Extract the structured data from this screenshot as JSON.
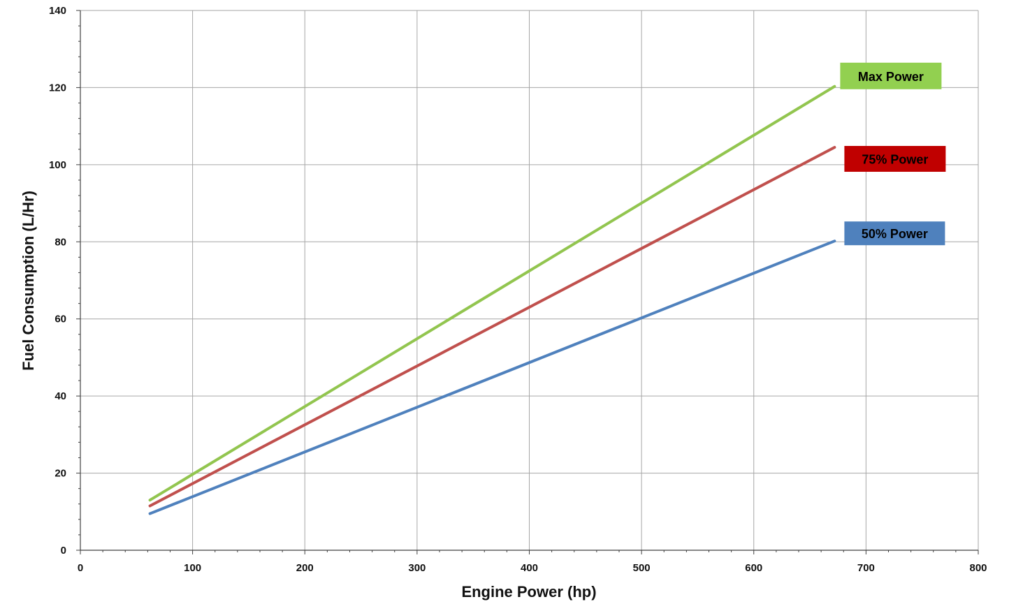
{
  "chart_data": {
    "type": "line",
    "title": "",
    "xlabel": "Engine Power (hp)",
    "ylabel": "Fuel Consumption (L/Hr)",
    "xlim": [
      0,
      800
    ],
    "ylim": [
      0,
      140
    ],
    "xticks": [
      0,
      100,
      200,
      300,
      400,
      500,
      600,
      700,
      800
    ],
    "yticks": [
      0,
      20,
      40,
      60,
      80,
      100,
      120,
      140
    ],
    "x_minor_step": 20,
    "y_minor_step": 4,
    "grid": true,
    "legend": "inline labels at right end of each line",
    "series": [
      {
        "name": "Max Power",
        "color": "#92c54f",
        "label_color": "#92d050",
        "label_text_color": "#000000",
        "x": [
          62,
          672
        ],
        "y": [
          13,
          120.3
        ]
      },
      {
        "name": "75% Power",
        "color": "#c0504d",
        "label_color": "#c00000",
        "label_text_color": "#000000",
        "x": [
          62,
          672
        ],
        "y": [
          11.5,
          104.5
        ]
      },
      {
        "name": "50% Power",
        "color": "#4f81bd",
        "label_color": "#4f81bd",
        "label_text_color": "#000000",
        "x": [
          62,
          672
        ],
        "y": [
          9.5,
          80.2
        ]
      }
    ]
  }
}
